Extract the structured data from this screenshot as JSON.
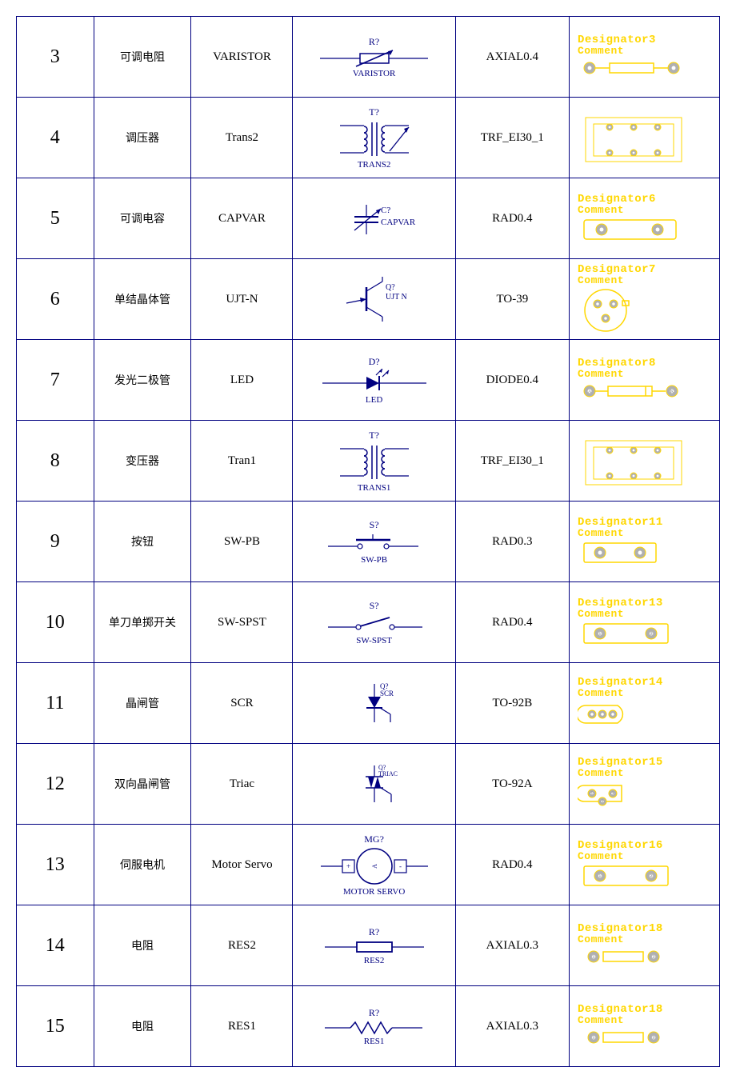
{
  "colors": {
    "border": "#000080",
    "schematic": "#000080",
    "footprint": "#ffd700",
    "pad_gray": "#b0b0b0",
    "pad_stroke": "#ffd700"
  },
  "rows": [
    {
      "num": "3",
      "cn": "可调电阻",
      "lib": "VARISTOR",
      "sym_top": "R?",
      "sym_bot": "VARISTOR",
      "sym_type": "varistor",
      "fp": "AXIAL0.4",
      "fp_des": "Designator3",
      "fp_com": "Comment",
      "fp_type": "axial"
    },
    {
      "num": "4",
      "cn": "调压器",
      "lib": "Trans2",
      "sym_top": "T?",
      "sym_bot": "TRANS2",
      "sym_type": "trans2",
      "fp": "TRF_EI30_1",
      "fp_des": "",
      "fp_com": "",
      "fp_type": "trf"
    },
    {
      "num": "5",
      "cn": "可调电容",
      "lib": "CAPVAR",
      "sym_top": "",
      "sym_bot": "",
      "sym_ref": "C?",
      "sym_lbl": "CAPVAR",
      "sym_type": "capvar",
      "fp": "RAD0.4",
      "fp_des": "Designator6",
      "fp_com": "Comment",
      "fp_type": "rad04"
    },
    {
      "num": "6",
      "cn": "单结晶体管",
      "lib": "UJT-N",
      "sym_top": "",
      "sym_bot": "",
      "sym_ref": "Q?",
      "sym_lbl": "UJT N",
      "sym_type": "ujt",
      "fp": "TO-39",
      "fp_des": "Designator7",
      "fp_com": "Comment",
      "fp_type": "to39"
    },
    {
      "num": "7",
      "cn": "发光二极管",
      "lib": "LED",
      "sym_top": "D?",
      "sym_bot": "LED",
      "sym_type": "led",
      "fp": "DIODE0.4",
      "fp_des": "Designator8",
      "fp_com": "Comment",
      "fp_type": "diode04"
    },
    {
      "num": "8",
      "cn": "变压器",
      "lib": "Tran1",
      "sym_top": "T?",
      "sym_bot": "TRANS1",
      "sym_type": "trans1",
      "fp": "TRF_EI30_1",
      "fp_des": "",
      "fp_com": "",
      "fp_type": "trf"
    },
    {
      "num": "9",
      "cn": "按钮",
      "lib": "SW-PB",
      "sym_top": "S?",
      "sym_bot": "SW-PB",
      "sym_type": "swpb",
      "fp": "RAD0.3",
      "fp_des": "Designator11",
      "fp_com": "Comment",
      "fp_type": "rad03"
    },
    {
      "num": "10",
      "cn": "单刀单掷开关",
      "lib": "SW-SPST",
      "sym_top": "S?",
      "sym_bot": "SW-SPST",
      "sym_type": "spst",
      "fp": "RAD0.4",
      "fp_des": "Designator13",
      "fp_com": "Comment",
      "fp_type": "rad04n"
    },
    {
      "num": "11",
      "cn": "晶闸管",
      "lib": "SCR",
      "sym_top": "",
      "sym_bot": "",
      "sym_ref": "Q?",
      "sym_lbl": "SCR",
      "sym_type": "scr",
      "fp": "TO-92B",
      "fp_des": "Designator14",
      "fp_com": "Comment",
      "fp_type": "to92b"
    },
    {
      "num": "12",
      "cn": "双向晶闸管",
      "lib": "Triac",
      "sym_top": "",
      "sym_bot": "",
      "sym_ref": "Q?",
      "sym_lbl": "TRIAC",
      "sym_type": "triac",
      "fp": "TO-92A",
      "fp_des": "Designator15",
      "fp_com": "Comment",
      "fp_type": "to92a"
    },
    {
      "num": "13",
      "cn": "伺服电机",
      "lib": "Motor Servo",
      "sym_top": "MG?",
      "sym_bot": "MOTOR SERVO",
      "sym_type": "motor",
      "fp": "RAD0.4",
      "fp_des": "Designator16",
      "fp_com": "Comment",
      "fp_type": "rad04n"
    },
    {
      "num": "14",
      "cn": "电阻",
      "lib": "RES2",
      "sym_top": "R?",
      "sym_bot": "RES2",
      "sym_type": "res2",
      "fp": "AXIAL0.3",
      "fp_des": "Designator18",
      "fp_com": "Comment",
      "fp_type": "axial03"
    },
    {
      "num": "15",
      "cn": "电阻",
      "lib": "RES1",
      "sym_top": "R?",
      "sym_bot": "RES1",
      "sym_type": "res1",
      "fp": "AXIAL0.3",
      "fp_des": "Designator18",
      "fp_com": "Comment",
      "fp_type": "axial03"
    }
  ]
}
